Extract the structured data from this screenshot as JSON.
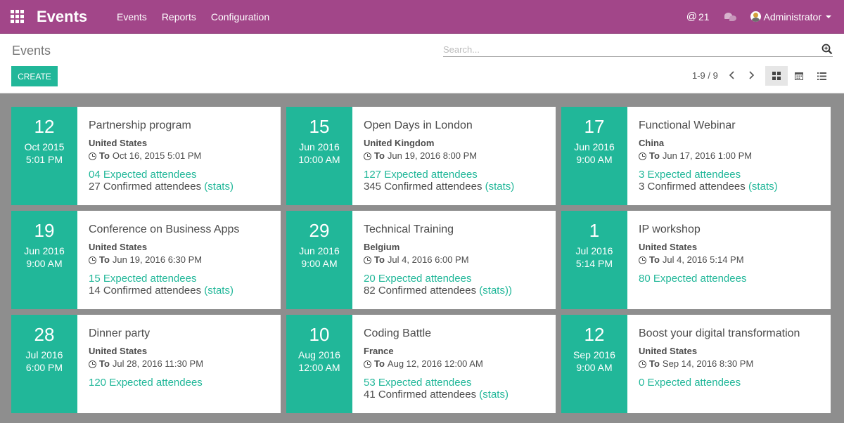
{
  "topbar": {
    "brand": "Events",
    "menu": [
      "Events",
      "Reports",
      "Configuration"
    ],
    "mentions_count": "21",
    "user": "Administrator"
  },
  "control": {
    "breadcrumb": "Events",
    "search_placeholder": "Search...",
    "create_label": "CREATE",
    "pager": "1-9 / 9"
  },
  "colors": {
    "brand": "#a24689",
    "accent": "#21b799"
  },
  "events": [
    {
      "day": "12",
      "month": "Oct 2015",
      "time": "5:01 PM",
      "name": "Partnership program",
      "country": "United States",
      "to_label": "To",
      "to": "Oct 16, 2015 5:01 PM",
      "expected": "04 Expected attendees",
      "confirmed": "27 Confirmed attendees",
      "stats": "(stats)"
    },
    {
      "day": "15",
      "month": "Jun 2016",
      "time": "10:00 AM",
      "name": "Open Days in London",
      "country": "United Kingdom",
      "to_label": "To",
      "to": "Jun 19, 2016 8:00 PM",
      "expected": "127 Expected attendees",
      "confirmed": "345 Confirmed attendees",
      "stats": "(stats)"
    },
    {
      "day": "17",
      "month": "Jun 2016",
      "time": "9:00 AM",
      "name": "Functional Webinar",
      "country": "China",
      "to_label": "To",
      "to": "Jun 17, 2016 1:00 PM",
      "expected": "3 Expected attendees",
      "confirmed": "3 Confirmed attendees",
      "stats": "(stats)"
    },
    {
      "day": "19",
      "month": "Jun 2016",
      "time": "9:00 AM",
      "name": "Conference on Business Apps",
      "country": "United States",
      "to_label": "To",
      "to": "Jun 19, 2016 6:30 PM",
      "expected": "15 Expected attendees",
      "confirmed": "14 Confirmed attendees",
      "stats": "(stats)"
    },
    {
      "day": "29",
      "month": "Jun 2016",
      "time": "9:00 AM",
      "name": "Technical Training",
      "country": "Belgium",
      "to_label": "To",
      "to": "Jul 4, 2016 6:00 PM",
      "expected": "20 Expected attendees",
      "confirmed": "82 Confirmed attendees",
      "stats": "(stats))"
    },
    {
      "day": "1",
      "month": "Jul 2016",
      "time": "5:14 PM",
      "name": "IP workshop",
      "country": "United States",
      "to_label": "To",
      "to": "Jul 4, 2016 5:14 PM",
      "expected": "80 Expected attendees",
      "confirmed": "",
      "stats": ""
    },
    {
      "day": "28",
      "month": "Jul 2016",
      "time": "6:00 PM",
      "name": "Dinner party",
      "country": "United States",
      "to_label": "To",
      "to": "Jul 28, 2016 11:30 PM",
      "expected": "120 Expected attendees",
      "confirmed": "",
      "stats": ""
    },
    {
      "day": "10",
      "month": "Aug 2016",
      "time": "12:00 AM",
      "name": "Coding Battle",
      "country": "France",
      "to_label": "To",
      "to": "Aug 12, 2016 12:00 AM",
      "expected": "53 Expected attendees",
      "confirmed": "41 Confirmed attendees",
      "stats": "(stats)"
    },
    {
      "day": "12",
      "month": "Sep 2016",
      "time": "9:00 AM",
      "name": "Boost your digital transformation",
      "country": "United States",
      "to_label": "To",
      "to": "Sep 14, 2016 8:30 PM",
      "expected": "0 Expected attendees",
      "confirmed": "",
      "stats": ""
    }
  ]
}
